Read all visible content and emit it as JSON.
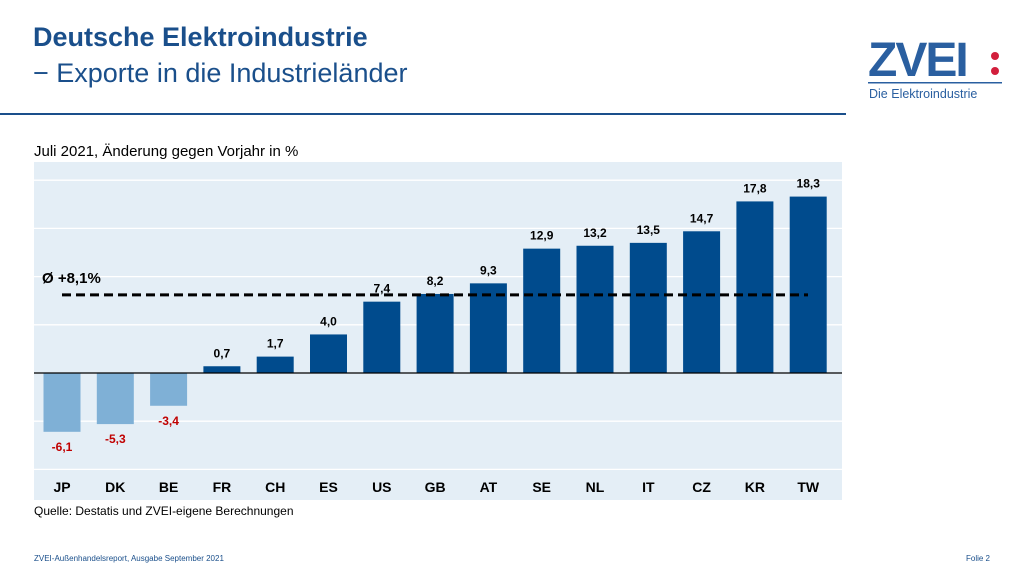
{
  "header": {
    "title": "Deutsche Elektroindustrie",
    "subtitle": "− Exporte in die Industrieländer"
  },
  "logo": {
    "text": "ZVEI:",
    "tagline": "Die Elektroindustrie"
  },
  "footer": {
    "left": "ZVEI-Außenhandelsreport, Ausgabe September 2021",
    "right": "Folie 2"
  },
  "colors": {
    "positive": "#004b8d",
    "negative": "#7fb0d6",
    "negative_label": "#c00000",
    "plot_bg": "#e4eef6",
    "title": "#1a4f8b"
  },
  "chart_data": {
    "type": "bar",
    "title": "Juli 2021, Änderung gegen Vorjahr in %",
    "source": "Quelle: Destatis und ZVEI-eigene Berechnungen",
    "categories": [
      "JP",
      "DK",
      "BE",
      "FR",
      "CH",
      "ES",
      "US",
      "GB",
      "AT",
      "SE",
      "NL",
      "IT",
      "CZ",
      "KR",
      "TW"
    ],
    "values": [
      -6.1,
      -5.3,
      -3.4,
      0.7,
      1.7,
      4.0,
      7.4,
      8.2,
      9.3,
      12.9,
      13.2,
      13.5,
      14.7,
      17.8,
      18.3
    ],
    "labels": [
      "-6,1",
      "-5,3",
      "-3,4",
      "0,7",
      "1,7",
      "4,0",
      "7,4",
      "8,2",
      "9,3",
      "12,9",
      "13,2",
      "13,5",
      "14,7",
      "17,8",
      "18,3"
    ],
    "average": {
      "value": 8.1,
      "label": "Ø +8,1%"
    },
    "ylim": [
      -10,
      20
    ],
    "grid": true,
    "gridlines": [
      -10,
      -5,
      5,
      10,
      15,
      20
    ]
  }
}
